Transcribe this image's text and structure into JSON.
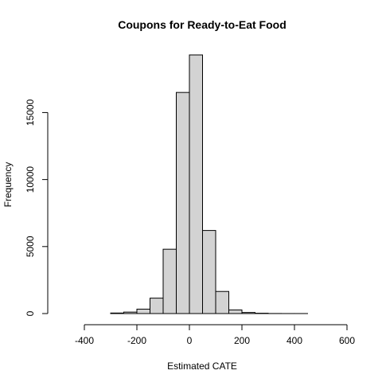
{
  "chart_data": {
    "type": "bar",
    "title": "Coupons for Ready-to-Eat Food",
    "xlabel": "Estimated CATE",
    "ylabel": "Frequency",
    "bin_width": 50,
    "bins": [
      {
        "start": -500,
        "end": -450,
        "count": 0
      },
      {
        "start": -450,
        "end": -400,
        "count": 0
      },
      {
        "start": -400,
        "end": -350,
        "count": 0
      },
      {
        "start": -350,
        "end": -300,
        "count": 0
      },
      {
        "start": -300,
        "end": -250,
        "count": 40
      },
      {
        "start": -250,
        "end": -200,
        "count": 110
      },
      {
        "start": -200,
        "end": -150,
        "count": 330
      },
      {
        "start": -150,
        "end": -100,
        "count": 1150
      },
      {
        "start": -100,
        "end": -50,
        "count": 4800
      },
      {
        "start": -50,
        "end": 0,
        "count": 16500
      },
      {
        "start": 0,
        "end": 50,
        "count": 19300
      },
      {
        "start": 50,
        "end": 100,
        "count": 6200
      },
      {
        "start": 100,
        "end": 150,
        "count": 1650
      },
      {
        "start": 150,
        "end": 200,
        "count": 270
      },
      {
        "start": 200,
        "end": 250,
        "count": 80
      },
      {
        "start": 250,
        "end": 300,
        "count": 25
      },
      {
        "start": 300,
        "end": 350,
        "count": 5
      },
      {
        "start": 350,
        "end": 400,
        "count": 2
      },
      {
        "start": 400,
        "end": 450,
        "count": 1
      },
      {
        "start": 450,
        "end": 500,
        "count": 0
      },
      {
        "start": 500,
        "end": 550,
        "count": 0
      },
      {
        "start": 550,
        "end": 600,
        "count": 0
      }
    ],
    "xlim": [
      -500,
      600
    ],
    "ylim": [
      0,
      19300
    ],
    "x_ticks": [
      -400,
      -200,
      0,
      200,
      400,
      600
    ],
    "x_tick_labels": [
      "-400",
      "-200",
      "0",
      "200",
      "400",
      "600"
    ],
    "y_ticks": [
      0,
      5000,
      10000,
      15000
    ],
    "y_tick_labels": [
      "0",
      "5000",
      "10000",
      "15000"
    ],
    "grid": false,
    "legend": "none",
    "bar_color": "#d3d3d3",
    "edge_color": "#000000"
  }
}
